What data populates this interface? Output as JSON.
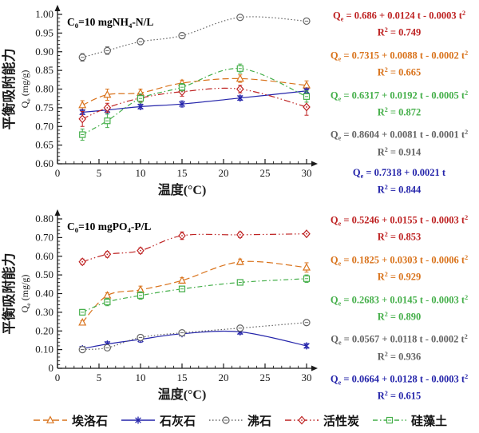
{
  "series_defs": [
    {
      "key": "halloysite",
      "label": "埃洛石",
      "color": "#D9731C",
      "marker": "triangle",
      "dash": "dashed"
    },
    {
      "key": "limestone",
      "label": "石灰石",
      "color": "#2424AA",
      "marker": "star",
      "dash": "solid"
    },
    {
      "key": "zeolite",
      "label": "沸石",
      "color": "#636363",
      "marker": "circle-dash",
      "dash": "dot"
    },
    {
      "key": "activated-carbon",
      "label": "活性炭",
      "color": "#BE2222",
      "marker": "diamond-dot",
      "dash": "dash-dot-dot"
    },
    {
      "key": "diatomite",
      "label": "硅藻土",
      "color": "#45AF4A",
      "marker": "square-dash",
      "dash": "dash-dot"
    }
  ],
  "chart_data": [
    {
      "type": "line",
      "id": "nh4-n",
      "title_segments": [
        {
          "t": "C"
        },
        {
          "sub": "0"
        },
        {
          "t": "=10 mgNH"
        },
        {
          "sub": "4"
        },
        {
          "t": "-N/L"
        }
      ],
      "ylabel_cn": "平衡吸附能力",
      "ylabel_q_segments": [
        {
          "t": "Q"
        },
        {
          "sub": "e"
        },
        {
          "t": " (mg/g)"
        }
      ],
      "xlabel": "温度(°C)",
      "xlim": [
        0,
        30
      ],
      "ylim": [
        0.6,
        1.0
      ],
      "xtick_labels": [
        "0",
        "5",
        "10",
        "15",
        "20",
        "25",
        "30"
      ],
      "xtick_values": [
        0,
        5,
        10,
        15,
        20,
        25,
        30
      ],
      "x_minor_step": 1,
      "ytick_labels": [
        "0.60",
        "0.65",
        "0.70",
        "0.75",
        "0.80",
        "0.85",
        "0.90",
        "0.95",
        "1.00"
      ],
      "ytick_values": [
        0.6,
        0.65,
        0.7,
        0.75,
        0.8,
        0.85,
        0.9,
        0.95,
        1.0
      ],
      "y_minor_step": 0.01,
      "grid": false,
      "x": [
        3,
        6,
        10,
        15,
        22,
        30
      ],
      "series": [
        {
          "key": "halloysite",
          "name": "埃洛石",
          "values": [
            0.757,
            0.785,
            0.79,
            0.816,
            0.828,
            0.81
          ],
          "errors": [
            0.012,
            0.015,
            0.01,
            0.008,
            0.01,
            0.012
          ]
        },
        {
          "key": "limestone",
          "name": "石灰石",
          "values": [
            0.738,
            0.744,
            0.753,
            0.76,
            0.776,
            0.795
          ],
          "errors": [
            0.006,
            0.01,
            0.006,
            0.008,
            0.006,
            0.006
          ]
        },
        {
          "key": "zeolite",
          "name": "沸石",
          "values": [
            0.885,
            0.903,
            0.927,
            0.943,
            0.992,
            0.982
          ],
          "errors": [
            0.01,
            0.01,
            0.008,
            0.008,
            0.005,
            0.006
          ]
        },
        {
          "key": "activated-carbon",
          "name": "活性炭",
          "values": [
            0.72,
            0.75,
            0.776,
            0.793,
            0.8,
            0.752
          ],
          "errors": [
            0.02,
            0.012,
            0.01,
            0.012,
            0.01,
            0.022
          ]
        },
        {
          "key": "diatomite",
          "name": "硅藻土",
          "values": [
            0.678,
            0.715,
            0.775,
            0.805,
            0.855,
            0.78
          ],
          "errors": [
            0.015,
            0.018,
            0.012,
            0.01,
            0.012,
            0.015
          ]
        }
      ],
      "equations": [
        {
          "series_key": "activated-carbon",
          "eq": [
            {
              "t": "Q"
            },
            {
              "sub": "e"
            },
            {
              "t": " = 0.686 + 0.0124 t - 0.0003 t"
            },
            {
              "sup": "2"
            }
          ],
          "r2": [
            {
              "t": "R"
            },
            {
              "sup": "2"
            },
            {
              "t": " = 0.749"
            }
          ]
        },
        {
          "series_key": "halloysite",
          "eq": [
            {
              "t": "Q"
            },
            {
              "sub": "e"
            },
            {
              "t": " = 0.7315 + 0.0088 t - 0.0002 t"
            },
            {
              "sup": "2"
            }
          ],
          "r2": [
            {
              "t": "R"
            },
            {
              "sup": "2"
            },
            {
              "t": " = 0.665"
            }
          ]
        },
        {
          "series_key": "diatomite",
          "eq": [
            {
              "t": "Q"
            },
            {
              "sub": "e"
            },
            {
              "t": " = 0.6317 + 0.0192 t - 0.0005 t"
            },
            {
              "sup": "2"
            }
          ],
          "r2": [
            {
              "t": "R"
            },
            {
              "sup": "2"
            },
            {
              "t": " = 0.872"
            }
          ]
        },
        {
          "series_key": "zeolite",
          "eq": [
            {
              "t": "Q"
            },
            {
              "sub": "e"
            },
            {
              "t": " = 0.8604 + 0.0081 t - 0.0001 t"
            },
            {
              "sup": "2"
            }
          ],
          "r2": [
            {
              "t": "R"
            },
            {
              "sup": "2"
            },
            {
              "t": " = 0.914"
            }
          ]
        },
        {
          "series_key": "limestone",
          "eq": [
            {
              "t": "Q"
            },
            {
              "sub": "e"
            },
            {
              "t": " = 0.7318 + 0.0021 t"
            }
          ],
          "r2": [
            {
              "t": "R"
            },
            {
              "sup": "2"
            },
            {
              "t": " = 0.844"
            }
          ]
        }
      ]
    },
    {
      "type": "line",
      "id": "po4-p",
      "title_segments": [
        {
          "t": "C"
        },
        {
          "sub": "0"
        },
        {
          "t": "=10 mgPO"
        },
        {
          "sub": "4"
        },
        {
          "t": "-P/L"
        }
      ],
      "ylabel_cn": "平衡吸附能力",
      "ylabel_q_segments": [
        {
          "t": "Q"
        },
        {
          "sub": "e"
        },
        {
          "t": " (mg/g)"
        }
      ],
      "xlabel": "温度(°C)",
      "xlim": [
        0,
        30
      ],
      "ylim": [
        0,
        0.8
      ],
      "xtick_labels": [
        "0",
        "5",
        "10",
        "15",
        "20",
        "25",
        "30"
      ],
      "xtick_values": [
        0,
        5,
        10,
        15,
        20,
        25,
        30
      ],
      "x_minor_step": 1,
      "ytick_labels": [
        "0",
        "0.10",
        "0.20",
        "0.30",
        "0.40",
        "0.50",
        "0.60",
        "0.70",
        "0.80"
      ],
      "ytick_values": [
        0,
        0.1,
        0.2,
        0.3,
        0.4,
        0.5,
        0.6,
        0.7,
        0.8
      ],
      "y_minor_step": 0.02,
      "grid": false,
      "x": [
        3,
        6,
        10,
        15,
        22,
        30
      ],
      "series": [
        {
          "key": "halloysite",
          "name": "埃洛石",
          "values": [
            0.245,
            0.39,
            0.42,
            0.47,
            0.57,
            0.54
          ],
          "errors": [
            0.01,
            0.015,
            0.02,
            0.015,
            0.015,
            0.025
          ]
        },
        {
          "key": "limestone",
          "name": "石灰石",
          "values": [
            0.105,
            0.13,
            0.155,
            0.185,
            0.195,
            0.12
          ],
          "errors": [
            0.008,
            0.012,
            0.015,
            0.01,
            0.012,
            0.012
          ]
        },
        {
          "key": "zeolite",
          "name": "沸石",
          "values": [
            0.1,
            0.11,
            0.165,
            0.19,
            0.215,
            0.245
          ],
          "errors": [
            0.008,
            0.015,
            0.015,
            0.012,
            0.015,
            0.01
          ]
        },
        {
          "key": "activated-carbon",
          "name": "活性炭",
          "values": [
            0.57,
            0.61,
            0.63,
            0.71,
            0.715,
            0.72
          ],
          "errors": [
            0.015,
            0.015,
            0.015,
            0.02,
            0.015,
            0.01
          ]
        },
        {
          "key": "diatomite",
          "name": "硅藻土",
          "values": [
            0.3,
            0.355,
            0.39,
            0.425,
            0.46,
            0.48
          ],
          "errors": [
            0.015,
            0.02,
            0.02,
            0.015,
            0.015,
            0.02
          ]
        }
      ],
      "equations": [
        {
          "series_key": "activated-carbon",
          "eq": [
            {
              "t": "Q"
            },
            {
              "sub": "e"
            },
            {
              "t": " = 0.5246 + 0.0155 t - 0.0003 t"
            },
            {
              "sup": "2"
            }
          ],
          "r2": [
            {
              "t": "R"
            },
            {
              "sup": "2"
            },
            {
              "t": " = 0.853"
            }
          ]
        },
        {
          "series_key": "halloysite",
          "eq": [
            {
              "t": "Q"
            },
            {
              "sub": "e"
            },
            {
              "t": " = 0.1825 + 0.0303 t - 0.0006 t"
            },
            {
              "sup": "2"
            }
          ],
          "r2": [
            {
              "t": "R"
            },
            {
              "sup": "2"
            },
            {
              "t": " = 0.929"
            }
          ]
        },
        {
          "series_key": "diatomite",
          "eq": [
            {
              "t": "Q"
            },
            {
              "sub": "e"
            },
            {
              "t": " = 0.2683 + 0.0145 t - 0.0003 t"
            },
            {
              "sup": "2"
            }
          ],
          "r2": [
            {
              "t": "R"
            },
            {
              "sup": "2"
            },
            {
              "t": " = 0.890"
            }
          ]
        },
        {
          "series_key": "zeolite",
          "eq": [
            {
              "t": "Q"
            },
            {
              "sub": "e"
            },
            {
              "t": " = 0.0567 + 0.0118 t - 0.0002 t"
            },
            {
              "sup": "2"
            }
          ],
          "r2": [
            {
              "t": "R"
            },
            {
              "sup": "2"
            },
            {
              "t": " = 0.936"
            }
          ]
        },
        {
          "series_key": "limestone",
          "eq": [
            {
              "t": "Q"
            },
            {
              "sub": "e"
            },
            {
              "t": " = 0.0664 + 0.0128 t - 0.0003 t"
            },
            {
              "sup": "2"
            }
          ],
          "r2": [
            {
              "t": "R"
            },
            {
              "sup": "2"
            },
            {
              "t": " = 0.615"
            }
          ]
        }
      ]
    }
  ]
}
